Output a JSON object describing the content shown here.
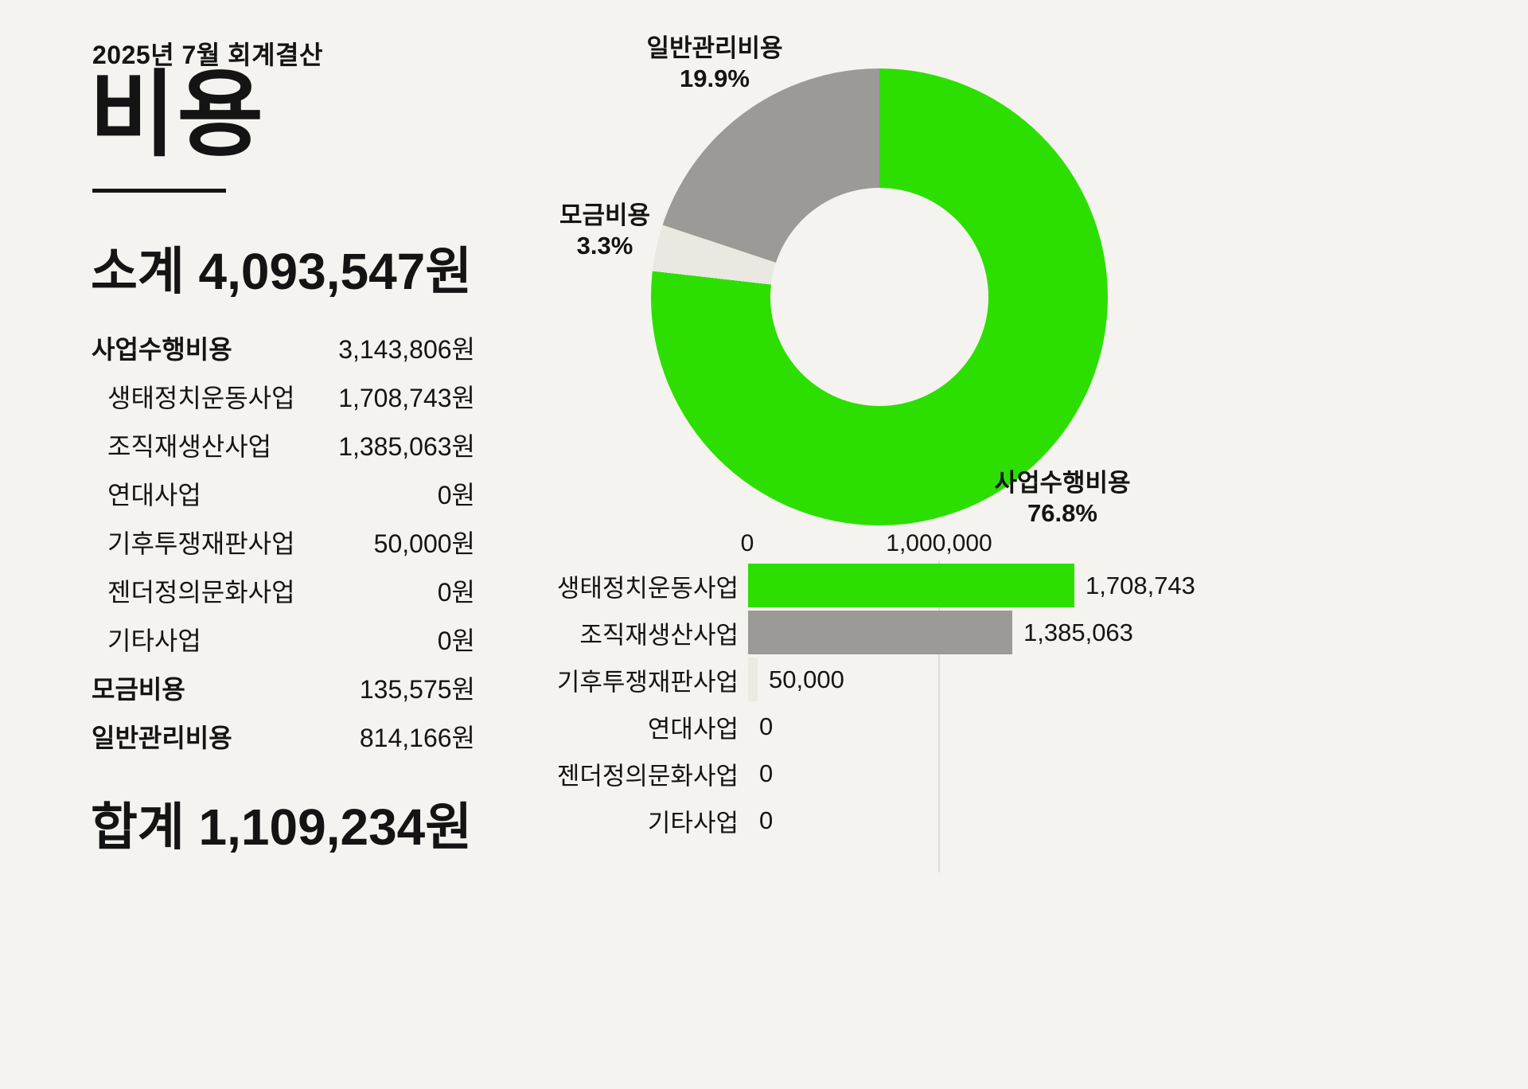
{
  "report": {
    "eyebrow": "2025년 7월 회계결산",
    "title": "비용"
  },
  "summary": {
    "subtotal_label": "소계",
    "subtotal_value": "4,093,547원",
    "total_label": "합계",
    "total_value": "1,109,234원"
  },
  "left_table": {
    "rows": [
      {
        "label": "사업수행비용",
        "value": "3,143,806원",
        "style": "head"
      },
      {
        "label": "생태정치운동사업",
        "value": "1,708,743원",
        "style": "sub"
      },
      {
        "label": "조직재생산사업",
        "value": "1,385,063원",
        "style": "sub"
      },
      {
        "label": "연대사업",
        "value": "0원",
        "style": "sub"
      },
      {
        "label": "기후투쟁재판사업",
        "value": "50,000원",
        "style": "sub"
      },
      {
        "label": "젠더정의문화사업",
        "value": "0원",
        "style": "sub"
      },
      {
        "label": "기타사업",
        "value": "0원",
        "style": "sub"
      },
      {
        "label": "모금비용",
        "value": "135,575원",
        "style": "head"
      },
      {
        "label": "일반관리비용",
        "value": "814,166원",
        "style": "head"
      }
    ]
  },
  "chart_data": [
    {
      "type": "pie",
      "subtype": "donut",
      "start_angle": "top",
      "direction": "clockwise",
      "labels": [
        "사업수행비용",
        "모금비용",
        "일반관리비용"
      ],
      "values_pct": [
        76.8,
        3.3,
        19.9
      ],
      "segment_colors": [
        "#2cdf00",
        "#e9e8e1",
        "#9b9a97"
      ],
      "callouts": [
        {
          "name": "사업수행비용",
          "pct": "76.8%"
        },
        {
          "name": "모금비용",
          "pct": "3.3%"
        },
        {
          "name": "일반관리비용",
          "pct": "19.9%"
        }
      ]
    },
    {
      "type": "bar",
      "orientation": "horizontal",
      "categories": [
        "생태정치운동사업",
        "조직재생산사업",
        "기후투쟁재판사업",
        "연대사업",
        "젠더정의문화사업",
        "기타사업"
      ],
      "values": [
        1708743,
        1385063,
        50000,
        0,
        0,
        0
      ],
      "value_labels": [
        "1,708,743",
        "1,385,063",
        "50,000",
        "0",
        "0",
        "0"
      ],
      "bar_colors": [
        "#2cdf00",
        "#9b9a97",
        "#ebeae3",
        "#ebeae3",
        "#ebeae3",
        "#ebeae3"
      ],
      "xticks": [
        0,
        1000000
      ],
      "xtick_labels": [
        "0",
        "1,000,000"
      ],
      "xlim": [
        0,
        1750000
      ],
      "grid": "vertical line at 1,000,000"
    }
  ]
}
